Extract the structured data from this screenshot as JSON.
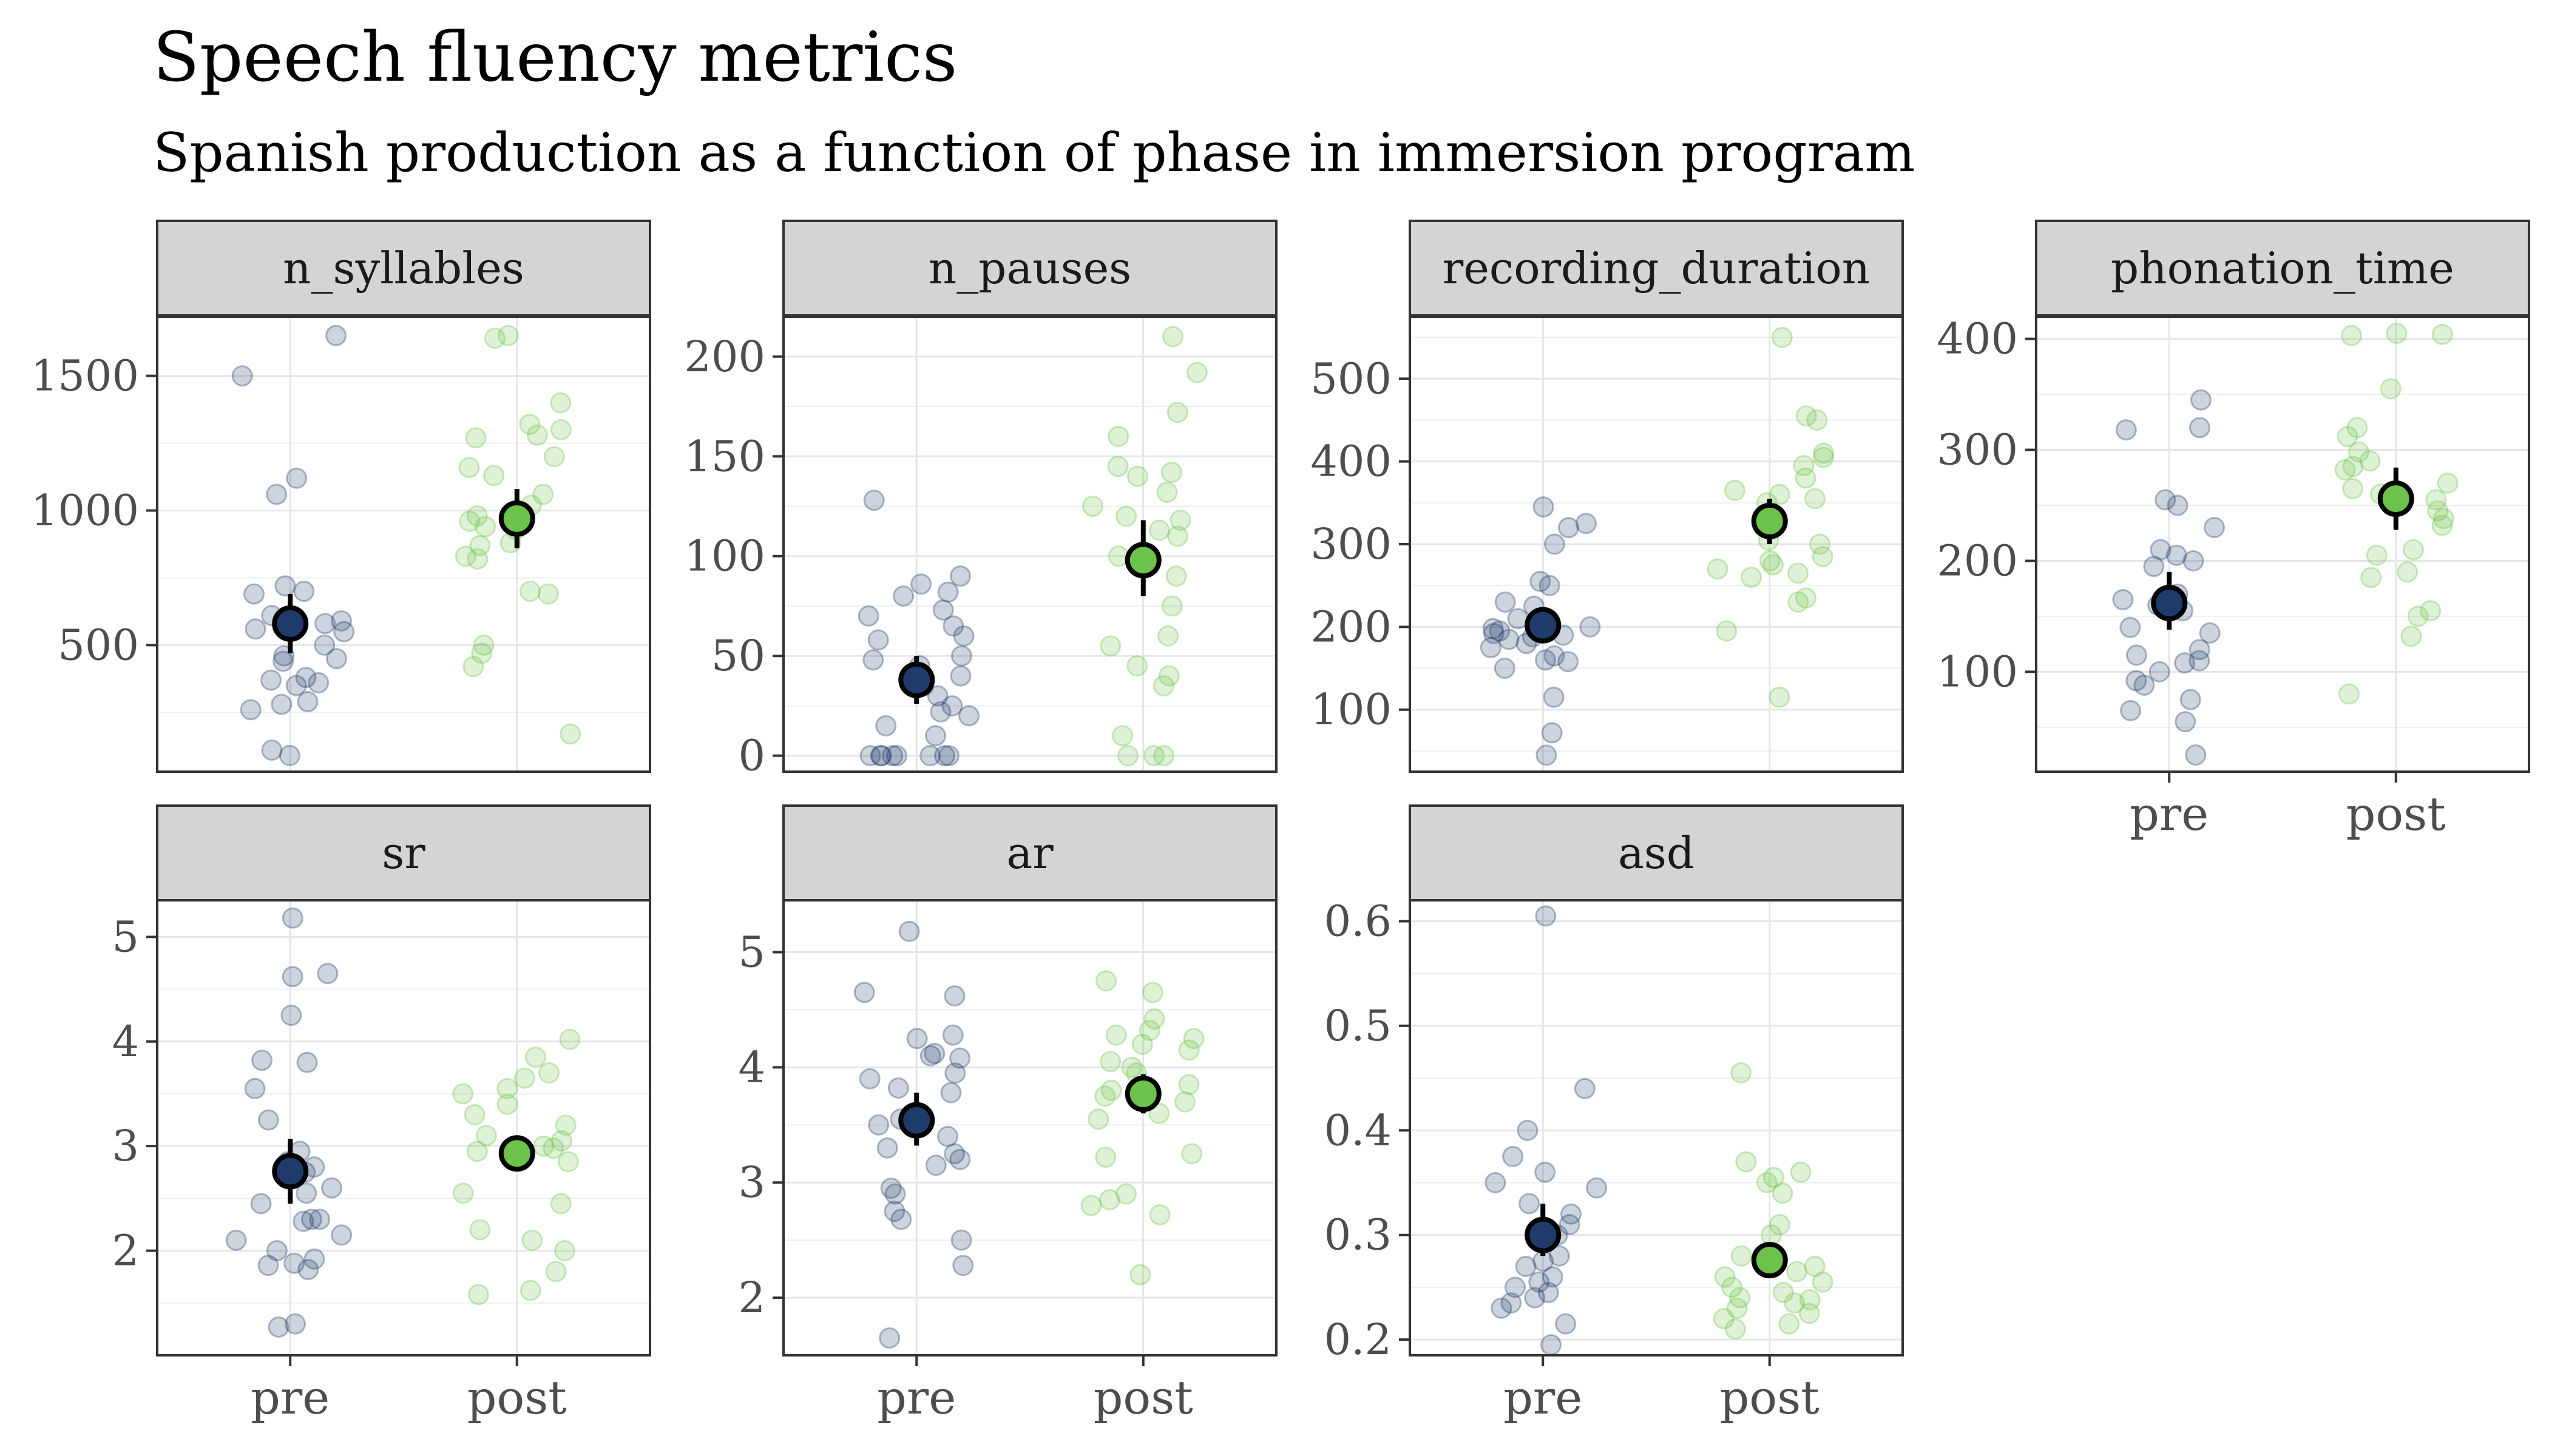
{
  "title": "Speech fluency metrics",
  "subtitle": "Spanish production as a function of phase in immersion program",
  "colors": {
    "pre": "#1f3b6b",
    "post": "#6cc24a",
    "strip_bg": "#d4d4d4",
    "grid": "#e6e6e6"
  },
  "chart_data": {
    "type": "scatter",
    "categories": [
      "pre",
      "post"
    ],
    "panels": [
      {
        "name": "n_syllables",
        "ylim": [
          30,
          1720
        ],
        "ticks": [
          500,
          1000,
          1500
        ],
        "points": {
          "pre": [
            1650,
            1500,
            1120,
            1060,
            720,
            700,
            690,
            610,
            600,
            590,
            580,
            560,
            550,
            500,
            460,
            450,
            440,
            380,
            370,
            360,
            350,
            290,
            280,
            260,
            110,
            90
          ],
          "post": [
            1650,
            1640,
            1400,
            1320,
            1300,
            1280,
            1270,
            1200,
            1160,
            1130,
            1060,
            1020,
            980,
            960,
            940,
            930,
            880,
            870,
            830,
            820,
            700,
            690,
            500,
            470,
            420,
            170
          ]
        },
        "means": {
          "pre": 580,
          "post": 970
        },
        "ci": {
          "pre": [
            470,
            690
          ],
          "post": [
            860,
            1080
          ]
        }
      },
      {
        "name": "n_pauses",
        "ylim": [
          -8,
          220
        ],
        "ticks": [
          0,
          50,
          100,
          150,
          200
        ],
        "points": {
          "pre": [
            128,
            90,
            86,
            82,
            80,
            73,
            70,
            65,
            60,
            58,
            50,
            48,
            45,
            40,
            35,
            30,
            25,
            22,
            20,
            15,
            10,
            0,
            0,
            0,
            0,
            0,
            0,
            0,
            0
          ],
          "post": [
            210,
            192,
            172,
            160,
            145,
            142,
            140,
            132,
            125,
            120,
            118,
            113,
            110,
            100,
            90,
            75,
            60,
            55,
            45,
            40,
            35,
            10,
            0,
            0,
            0
          ]
        },
        "means": {
          "pre": 38,
          "post": 98
        },
        "ci": {
          "pre": [
            26,
            50
          ],
          "post": [
            80,
            118
          ]
        }
      },
      {
        "name": "recording_duration",
        "ylim": [
          25,
          575
        ],
        "ticks": [
          100,
          200,
          300,
          400,
          500
        ],
        "points": {
          "pre": [
            345,
            325,
            320,
            300,
            255,
            250,
            230,
            225,
            210,
            205,
            200,
            198,
            195,
            192,
            190,
            188,
            185,
            180,
            175,
            165,
            160,
            158,
            150,
            115,
            72,
            45
          ],
          "post": [
            550,
            455,
            450,
            410,
            405,
            395,
            380,
            365,
            360,
            355,
            350,
            330,
            305,
            300,
            285,
            280,
            275,
            270,
            265,
            260,
            235,
            230,
            195,
            115
          ]
        },
        "means": {
          "pre": 202,
          "post": 328
        },
        "ci": {
          "pre": [
            185,
            220
          ],
          "post": [
            300,
            355
          ]
        }
      },
      {
        "name": "phonation_time",
        "ylim": [
          10,
          420
        ],
        "ticks": [
          100,
          200,
          300,
          400
        ],
        "points": {
          "pre": [
            345,
            320,
            318,
            255,
            250,
            230,
            210,
            205,
            200,
            195,
            170,
            165,
            160,
            155,
            140,
            135,
            120,
            115,
            110,
            108,
            100,
            92,
            88,
            75,
            65,
            55,
            25
          ],
          "post": [
            405,
            404,
            403,
            355,
            320,
            312,
            298,
            290,
            285,
            282,
            270,
            265,
            260,
            255,
            245,
            238,
            232,
            210,
            205,
            190,
            185,
            155,
            150,
            132,
            80
          ]
        },
        "means": {
          "pre": 162,
          "post": 256
        },
        "ci": {
          "pre": [
            138,
            190
          ],
          "post": [
            228,
            284
          ]
        }
      },
      {
        "name": "sr",
        "ylim": [
          1.0,
          5.35
        ],
        "ticks": [
          2,
          3,
          4,
          5
        ],
        "points": {
          "pre": [
            5.18,
            4.65,
            4.62,
            4.25,
            3.82,
            3.8,
            3.55,
            3.25,
            2.95,
            2.85,
            2.82,
            2.8,
            2.75,
            2.6,
            2.55,
            2.45,
            2.3,
            2.3,
            2.28,
            2.15,
            2.1,
            2.0,
            1.92,
            1.88,
            1.86,
            1.82,
            1.3,
            1.27
          ],
          "post": [
            4.02,
            3.85,
            3.7,
            3.65,
            3.55,
            3.5,
            3.4,
            3.3,
            3.2,
            3.1,
            3.05,
            3.0,
            2.98,
            2.95,
            2.9,
            2.85,
            2.55,
            2.45,
            2.2,
            2.1,
            2.0,
            1.8,
            1.62,
            1.58
          ]
        },
        "means": {
          "pre": 2.76,
          "post": 2.93
        },
        "ci": {
          "pre": [
            2.45,
            3.07
          ],
          "post": [
            2.78,
            3.1
          ]
        }
      },
      {
        "name": "ar",
        "ylim": [
          1.5,
          5.45
        ],
        "ticks": [
          2,
          3,
          4,
          5
        ],
        "points": {
          "pre": [
            5.18,
            4.65,
            4.62,
            4.28,
            4.25,
            4.12,
            4.1,
            4.08,
            3.95,
            3.9,
            3.82,
            3.78,
            3.55,
            3.5,
            3.4,
            3.3,
            3.25,
            3.2,
            3.15,
            2.95,
            2.9,
            2.75,
            2.68,
            2.5,
            2.28,
            1.65
          ],
          "post": [
            4.75,
            4.65,
            4.42,
            4.32,
            4.28,
            4.25,
            4.2,
            4.15,
            4.05,
            4.0,
            3.95,
            3.85,
            3.8,
            3.75,
            3.7,
            3.6,
            3.55,
            3.25,
            3.22,
            2.9,
            2.85,
            2.8,
            2.72,
            2.2
          ]
        },
        "means": {
          "pre": 3.54,
          "post": 3.77
        },
        "ci": {
          "pre": [
            3.32,
            3.78
          ],
          "post": [
            3.6,
            3.94
          ]
        }
      },
      {
        "name": "asd",
        "ylim": [
          0.185,
          0.62
        ],
        "ticks": [
          0.2,
          0.3,
          0.4,
          0.5,
          0.6
        ],
        "points": {
          "pre": [
            0.605,
            0.44,
            0.4,
            0.375,
            0.36,
            0.35,
            0.345,
            0.33,
            0.32,
            0.31,
            0.3,
            0.28,
            0.275,
            0.27,
            0.26,
            0.255,
            0.25,
            0.245,
            0.24,
            0.235,
            0.23,
            0.215,
            0.195
          ],
          "post": [
            0.455,
            0.37,
            0.36,
            0.355,
            0.35,
            0.34,
            0.31,
            0.3,
            0.28,
            0.27,
            0.265,
            0.26,
            0.255,
            0.25,
            0.245,
            0.24,
            0.238,
            0.235,
            0.23,
            0.225,
            0.22,
            0.215,
            0.21
          ]
        },
        "means": {
          "pre": 0.3,
          "post": 0.276
        },
        "ci": {
          "pre": [
            0.28,
            0.33
          ],
          "post": [
            0.265,
            0.29
          ]
        }
      }
    ]
  }
}
